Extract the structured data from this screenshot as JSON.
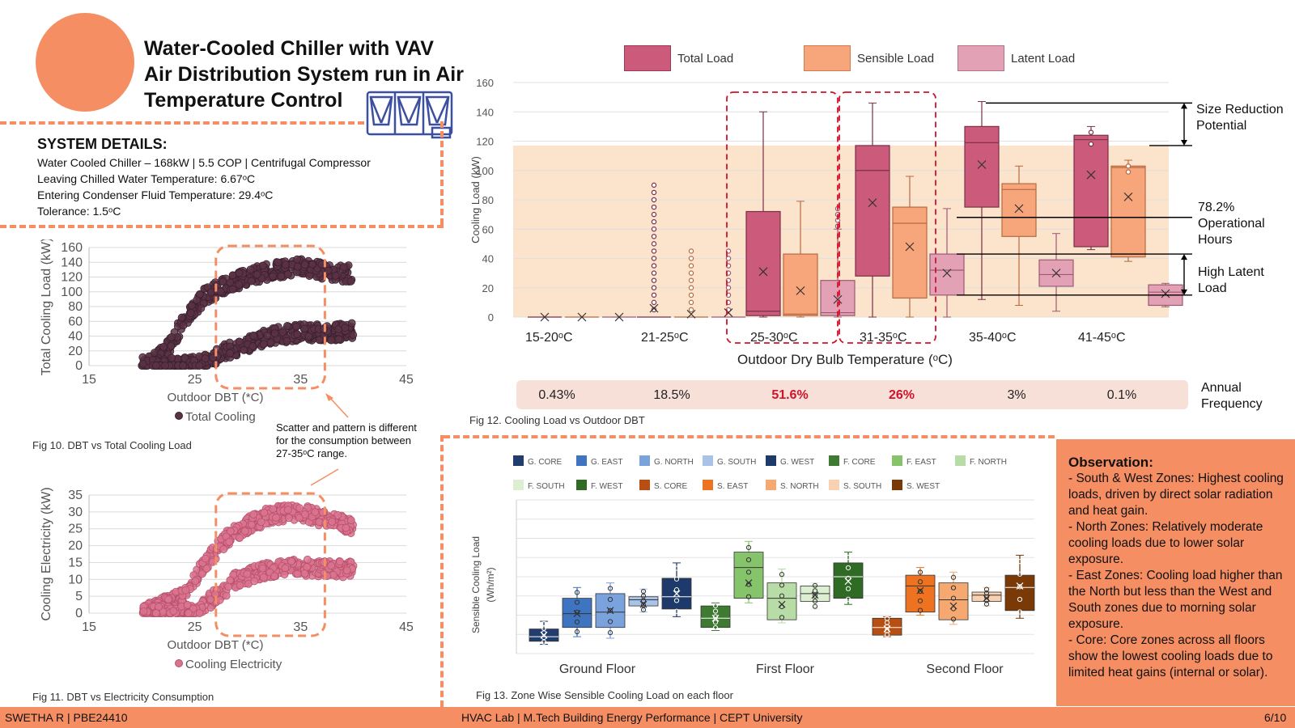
{
  "header": {
    "title_line1": "Water-Cooled Chiller with VAV",
    "title_line2": "Air Distribution System run in Air",
    "title_line3": "Temperature Control"
  },
  "system": {
    "heading": "SYSTEM DETAILS:",
    "line1": "Water Cooled Chiller – 168kW | 5.5 COP | Centrifugal Compressor",
    "line2": "Leaving Chilled Water Temperature: 6.67ᵒC",
    "line3": "Entering Condenser Fluid Temperature: 29.4ᵒC",
    "line4": "Tolerance: 1.5ᵒC"
  },
  "colors": {
    "accent": "#f58e62",
    "total": "#cc5a7a",
    "sensible": "#f7a57a",
    "latent": "#e2a1b4",
    "scatter1": "#5a3344",
    "scatter2": "#d9748f",
    "highlight": "#d0122c"
  },
  "fig10": {
    "caption": "Fig 10. DBT vs Total Cooling Load",
    "ylabel": "Total Cooling Load (kW)",
    "xlabel": "Outdoor DBT (*C)",
    "legend": "Total Cooling",
    "yticks": [
      "0",
      "20",
      "40",
      "60",
      "80",
      "100",
      "120",
      "140",
      "160"
    ],
    "xticks": [
      "15",
      "25",
      "35",
      "45"
    ]
  },
  "fig11": {
    "caption": "Fig 11. DBT vs Electricity Consumption",
    "ylabel": "Cooling Electricity (kW)",
    "xlabel": "Outdoor DBT (*C)",
    "legend": "Cooling Electricity",
    "yticks": [
      "0",
      "5",
      "10",
      "15",
      "20",
      "25",
      "30",
      "35"
    ],
    "xticks": [
      "15",
      "25",
      "35",
      "45"
    ]
  },
  "scatter_note": "Scatter and pattern is different for the consumption between 27-35ᵒC range.",
  "fig12": {
    "caption": "Fig 12. Cooling Load vs Outdoor DBT",
    "ylabel": "Cooling Load (kW)",
    "xlabel": "Outdoor Dry Bulb Temperature (ᵒC)",
    "legend": [
      "Total Load",
      "Sensible Load",
      "Latent Load"
    ],
    "yticks": [
      "0",
      "20",
      "40",
      "60",
      "80",
      "100",
      "120",
      "140",
      "160"
    ],
    "categories": [
      "15-20ᵒC",
      "21-25ᵒC",
      "25-30ᵒC",
      "31-35ᵒC",
      "35-40ᵒC",
      "41-45ᵒC"
    ],
    "annual_label": "Annual Frequency",
    "frequency": [
      "0.43%",
      "18.5%",
      "51.6%",
      "26%",
      "3%",
      "0.1%"
    ],
    "annotations": {
      "size_reduction": "Size Reduction Potential",
      "operational": "78.2% Operational Hours",
      "latent": "High Latent Load"
    }
  },
  "fig13": {
    "caption": "Fig 13. Zone Wise Sensible Cooling Load on each floor",
    "ylabel_line1": "Sensible Cooling Load",
    "ylabel_line2": "(Wh/m²)",
    "groups": [
      "Ground Floor",
      "First Floor",
      "Second Floor"
    ],
    "legend": [
      "G. CORE",
      "G. EAST",
      "G. NORTH",
      "G. SOUTH",
      "G. WEST",
      "F. CORE",
      "F. EAST",
      "F. NORTH",
      "F. SOUTH",
      "F. WEST",
      "S. CORE",
      "S. EAST",
      "S. NORTH",
      "S. SOUTH",
      "S. WEST"
    ]
  },
  "observation": {
    "title": "Observation:",
    "p1": "- South & West Zones: Highest cooling loads, driven by direct solar radiation and heat gain.",
    "p2": "- North Zones: Relatively moderate cooling loads due to lower solar exposure.",
    "p3": "- East Zones: Cooling load higher than the North but less than the West and South zones due to morning solar exposure.",
    "p4": "- Core: Core zones across all floors show the lowest cooling loads due to limited heat gains (internal or solar)."
  },
  "footer": {
    "left": "SWETHA R | PBE24410",
    "center": "HVAC Lab | M.Tech Building Energy Performance  | CEPT University",
    "right": "6/10"
  },
  "chart_data": [
    {
      "type": "scatter",
      "title": "Fig 10. DBT vs Total Cooling Load",
      "xlabel": "Outdoor DBT (*C)",
      "ylabel": "Total Cooling Load (kW)",
      "xlim": [
        15,
        45
      ],
      "ylim": [
        0,
        160
      ],
      "series": [
        {
          "name": "Total Cooling",
          "upper_band": [
            [
              20,
              0
            ],
            [
              22,
              15
            ],
            [
              24,
              60
            ],
            [
              26,
              95
            ],
            [
              28,
              110
            ],
            [
              30,
              120
            ],
            [
              32,
              128
            ],
            [
              35,
              135
            ],
            [
              38,
              125
            ],
            [
              40,
              125
            ]
          ],
          "lower_band": [
            [
              21,
              0
            ],
            [
              24,
              0
            ],
            [
              26,
              5
            ],
            [
              28,
              20
            ],
            [
              30,
              30
            ],
            [
              32,
              40
            ],
            [
              35,
              45
            ],
            [
              38,
              45
            ],
            [
              40,
              48
            ]
          ]
        }
      ]
    },
    {
      "type": "scatter",
      "title": "Fig 11. DBT vs Electricity Consumption",
      "xlabel": "Outdoor DBT (*C)",
      "ylabel": "Cooling Electricity (kW)",
      "xlim": [
        15,
        45
      ],
      "ylim": [
        0,
        35
      ],
      "series": [
        {
          "name": "Cooling Electricity",
          "upper_band": [
            [
              20,
              0
            ],
            [
              24,
              5
            ],
            [
              26,
              15
            ],
            [
              28,
              22
            ],
            [
              30,
              26
            ],
            [
              32,
              29
            ],
            [
              35,
              30
            ],
            [
              38,
              27
            ],
            [
              40,
              26
            ]
          ],
          "lower_band": [
            [
              21,
              0
            ],
            [
              25,
              0
            ],
            [
              27,
              5
            ],
            [
              29,
              10
            ],
            [
              31,
              12
            ],
            [
              34,
              14
            ],
            [
              37,
              13
            ],
            [
              40,
              13
            ]
          ]
        }
      ]
    },
    {
      "type": "box",
      "title": "Fig 12. Cooling Load vs Outdoor DBT",
      "xlabel": "Outdoor Dry Bulb Temperature (ᵒC)",
      "ylabel": "Cooling Load (kW)",
      "ylim": [
        0,
        160
      ],
      "categories": [
        "15-20ᵒC",
        "21-25ᵒC",
        "25-30ᵒC",
        "31-35ᵒC",
        "35-40ᵒC",
        "41-45ᵒC"
      ],
      "series": [
        {
          "name": "Total Load",
          "boxes": [
            {
              "min": 0,
              "q1": 0,
              "median": 0,
              "q3": 0,
              "max": 0,
              "mean": 0,
              "outliers": []
            },
            {
              "min": 0,
              "q1": 0,
              "median": 0,
              "q3": 0,
              "max": 0,
              "mean": 6,
              "outliers": [
                5,
                10,
                15,
                20,
                25,
                30,
                35,
                40,
                45,
                50,
                55,
                60,
                65,
                70,
                75,
                80,
                85,
                90
              ]
            },
            {
              "min": 0,
              "q1": 1,
              "median": 4,
              "q3": 72,
              "max": 140,
              "mean": 31,
              "outliers": []
            },
            {
              "min": 0,
              "q1": 28,
              "median": 100,
              "q3": 117,
              "max": 146,
              "mean": 78,
              "outliers": []
            },
            {
              "min": 12,
              "q1": 75,
              "median": 119,
              "q3": 130,
              "max": 147,
              "mean": 104,
              "outliers": []
            },
            {
              "min": 46,
              "q1": 48,
              "median": 121,
              "q3": 124,
              "max": 130,
              "mean": 97,
              "outliers": [
                118,
                126
              ]
            }
          ]
        },
        {
          "name": "Sensible Load",
          "boxes": [
            {
              "min": 0,
              "q1": 0,
              "median": 0,
              "q3": 0,
              "max": 0,
              "mean": 0,
              "outliers": []
            },
            {
              "min": 0,
              "q1": 0,
              "median": 0,
              "q3": 0,
              "max": 0,
              "mean": 2,
              "outliers": [
                5,
                10,
                15,
                20,
                25,
                30,
                35,
                40,
                45
              ]
            },
            {
              "min": 0,
              "q1": 1,
              "median": 2,
              "q3": 43,
              "max": 79,
              "mean": 18,
              "outliers": []
            },
            {
              "min": 0,
              "q1": 13,
              "median": 64,
              "q3": 75,
              "max": 96,
              "mean": 48,
              "outliers": []
            },
            {
              "min": 8,
              "q1": 55,
              "median": 87,
              "q3": 91,
              "max": 103,
              "mean": 74,
              "outliers": []
            },
            {
              "min": 38,
              "q1": 41,
              "median": 102,
              "q3": 103,
              "max": 107,
              "mean": 82,
              "outliers": [
                99,
                103
              ]
            }
          ]
        },
        {
          "name": "Latent Load",
          "boxes": [
            {
              "min": 0,
              "q1": 0,
              "median": 0,
              "q3": 0,
              "max": 0,
              "mean": 0,
              "outliers": []
            },
            {
              "min": 0,
              "q1": 0,
              "median": 0,
              "q3": 0,
              "max": 0,
              "mean": 3,
              "outliers": [
                5,
                10,
                15,
                20,
                25,
                30,
                35,
                40,
                45
              ]
            },
            {
              "min": 0,
              "q1": 1,
              "median": 3,
              "q3": 25,
              "max": 60,
              "mean": 12,
              "outliers": [
                62,
                66,
                70,
                74
              ]
            },
            {
              "min": 0,
              "q1": 15,
              "median": 32,
              "q3": 43,
              "max": 74,
              "mean": 30,
              "outliers": []
            },
            {
              "min": 4,
              "q1": 21,
              "median": 29,
              "q3": 39,
              "max": 57,
              "mean": 30,
              "outliers": []
            },
            {
              "min": 7,
              "q1": 8,
              "median": 17,
              "q3": 22,
              "max": 23,
              "mean": 16,
              "outliers": []
            }
          ]
        }
      ],
      "annual_frequency": [
        "0.43%",
        "18.5%",
        "51.6%",
        "26%",
        "3%",
        "0.1%"
      ],
      "operational_band": [
        0,
        117
      ]
    },
    {
      "type": "box",
      "title": "Fig 13. Zone Wise Sensible Cooling Load on each floor",
      "ylabel": "Sensible Cooling Load (Wh/m²)",
      "groups": [
        "Ground Floor",
        "First Floor",
        "Second Floor"
      ],
      "ylim": [
        0,
        10
      ],
      "series": [
        {
          "name": "G. CORE",
          "color": "#203d6e",
          "min": 0.6,
          "q1": 0.8,
          "median": 1.1,
          "q3": 1.6,
          "max": 2.1,
          "mean": 1.2
        },
        {
          "name": "G. EAST",
          "color": "#3f74c0",
          "min": 1.1,
          "q1": 1.7,
          "median": 2.6,
          "q3": 3.6,
          "max": 4.3,
          "mean": 2.6
        },
        {
          "name": "G. NORTH",
          "color": "#7aa2dc",
          "min": 1.0,
          "q1": 1.7,
          "median": 2.7,
          "q3": 3.9,
          "max": 4.6,
          "mean": 2.8
        },
        {
          "name": "G. SOUTH",
          "color": "#a8c2e8",
          "min": 2.7,
          "q1": 3.1,
          "median": 3.5,
          "q3": 3.7,
          "max": 4.2,
          "mean": 3.2
        },
        {
          "name": "G. WEST",
          "color": "#1e3a6a",
          "min": 2.4,
          "q1": 2.9,
          "median": 3.7,
          "q3": 4.9,
          "max": 5.9,
          "mean": 3.9
        },
        {
          "name": "F. CORE",
          "color": "#3f7a33",
          "min": 1.5,
          "q1": 1.7,
          "median": 2.3,
          "q3": 3.1,
          "max": 3.3,
          "mean": 2.3
        },
        {
          "name": "F. EAST",
          "color": "#86c46b",
          "min": 3.3,
          "q1": 3.6,
          "median": 5.6,
          "q3": 6.6,
          "max": 7.3,
          "mean": 4.6
        },
        {
          "name": "F. NORTH",
          "color": "#b8dca5",
          "min": 2.0,
          "q1": 2.2,
          "median": 3.6,
          "q3": 4.6,
          "max": 5.5,
          "mean": 3.2
        },
        {
          "name": "F. SOUTH",
          "color": "#dcefd0",
          "min": 2.9,
          "q1": 3.4,
          "median": 3.9,
          "q3": 4.4,
          "max": 4.6,
          "mean": 3.8
        },
        {
          "name": "F. WEST",
          "color": "#2f6b25",
          "min": 3.2,
          "q1": 3.6,
          "median": 5.0,
          "q3": 5.9,
          "max": 6.6,
          "mean": 4.7
        },
        {
          "name": "S. CORE",
          "color": "#b84e12",
          "min": 1.1,
          "q1": 1.2,
          "median": 1.7,
          "q3": 2.3,
          "max": 2.4,
          "mean": 1.6
        },
        {
          "name": "S. EAST",
          "color": "#ed7320",
          "min": 2.5,
          "q1": 2.7,
          "median": 4.4,
          "q3": 5.1,
          "max": 5.6,
          "mean": 4.1
        },
        {
          "name": "S. NORTH",
          "color": "#f5a870",
          "min": 1.9,
          "q1": 2.2,
          "median": 3.5,
          "q3": 4.6,
          "max": 5.3,
          "mean": 3.1
        },
        {
          "name": "S. SOUTH",
          "color": "#f9d0b0",
          "min": 3.1,
          "q1": 3.4,
          "median": 3.8,
          "q3": 4.0,
          "max": 4.3,
          "mean": 3.6
        },
        {
          "name": "S. WEST",
          "color": "#7a3a08",
          "min": 2.3,
          "q1": 2.8,
          "median": 4.3,
          "q3": 5.1,
          "max": 6.4,
          "mean": 4.4
        }
      ]
    }
  ]
}
